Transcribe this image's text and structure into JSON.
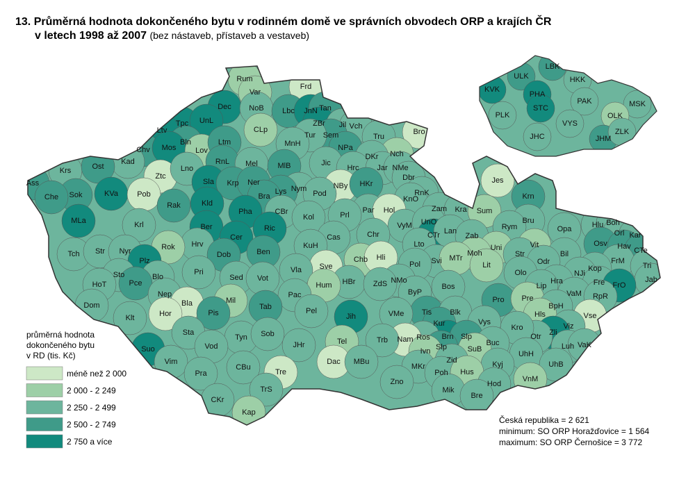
{
  "header": {
    "title_line1": "13. Průměrná hodnota dokončeného bytu v rodinném domě ve správních obvodech ORP a krajích ČR",
    "title_line2": "v letech 1998 až 2007",
    "title_note": "(bez nástaveb, přístaveb a vestaveb)"
  },
  "legend": {
    "title": [
      "průměrná hodnota",
      "dokončeného bytu",
      "v RD (tis. Kč)"
    ],
    "classes": [
      {
        "label": "méně než 2 000",
        "color": "#cde8c6"
      },
      {
        "label": "2 000 - 2 249",
        "color": "#9dcfa7"
      },
      {
        "label": "2 250 - 2 499",
        "color": "#6db59d"
      },
      {
        "label": "2 500 - 2 749",
        "color": "#3f9b89"
      },
      {
        "label": "2 750 a více",
        "color": "#128a7d"
      }
    ]
  },
  "notes": [
    "Česká republika = 2 621",
    "minimum: SO ORP Horažďovice = 1 564",
    "maximum: SO ORP Černošice = 3 772"
  ],
  "map": {
    "regions": [
      {
        "label": "Rum",
        "color": "#9dcfa7"
      },
      {
        "label": "Var",
        "color": "#9dcfa7"
      },
      {
        "label": "Frd",
        "color": "#cde8c6"
      },
      {
        "label": "Dec",
        "color": "#128a7d"
      },
      {
        "label": "NoB",
        "color": "#6db59d"
      },
      {
        "label": "Lbc",
        "color": "#3f9b89"
      },
      {
        "label": "JnN",
        "color": "#128a7d"
      },
      {
        "label": "Tan",
        "color": "#3f9b89"
      },
      {
        "label": "Tpc",
        "color": "#128a7d"
      },
      {
        "label": "UnL",
        "color": "#128a7d"
      },
      {
        "label": "CLp",
        "color": "#9dcfa7"
      },
      {
        "label": "ZBr",
        "color": "#128a7d"
      },
      {
        "label": "Jil",
        "color": "#6db59d"
      },
      {
        "label": "Vch",
        "color": "#6db59d"
      },
      {
        "label": "Ltv",
        "color": "#128a7d"
      },
      {
        "label": "Bln",
        "color": "#3f9b89"
      },
      {
        "label": "Sem",
        "color": "#3f9b89"
      },
      {
        "label": "Tur",
        "color": "#6db59d"
      },
      {
        "label": "Bro",
        "color": "#cde8c6"
      },
      {
        "label": "Chv",
        "color": "#3f9b89"
      },
      {
        "label": "Mos",
        "color": "#128a7d"
      },
      {
        "label": "Lov",
        "color": "#9dcfa7"
      },
      {
        "label": "Ltm",
        "color": "#3f9b89"
      },
      {
        "label": "MnH",
        "color": "#6db59d"
      },
      {
        "label": "Tru",
        "color": "#6db59d"
      },
      {
        "label": "NPa",
        "color": "#3f9b89"
      },
      {
        "label": "Nch",
        "color": "#9dcfa7"
      },
      {
        "label": "Kad",
        "color": "#6db59d"
      },
      {
        "label": "RnL",
        "color": "#3f9b89"
      },
      {
        "label": "Mel",
        "color": "#6db59d"
      },
      {
        "label": "MlB",
        "color": "#3f9b89"
      },
      {
        "label": "Jic",
        "color": "#6db59d"
      },
      {
        "label": "DKr",
        "color": "#6db59d"
      },
      {
        "label": "Krs",
        "color": "#6db59d"
      },
      {
        "label": "Ost",
        "color": "#3f9b89"
      },
      {
        "label": "Ztc",
        "color": "#cde8c6"
      },
      {
        "label": "Lno",
        "color": "#6db59d"
      },
      {
        "label": "Hrc",
        "color": "#6db59d"
      },
      {
        "label": "Jar",
        "color": "#6db59d"
      },
      {
        "label": "NMe",
        "color": "#6db59d"
      },
      {
        "label": "Ass",
        "color": "#3f9b89"
      },
      {
        "label": "Sla",
        "color": "#128a7d"
      },
      {
        "label": "Krp",
        "color": "#3f9b89"
      },
      {
        "label": "Ner",
        "color": "#3f9b89"
      },
      {
        "label": "Nym",
        "color": "#6db59d"
      },
      {
        "label": "NBy",
        "color": "#cde8c6"
      },
      {
        "label": "HKr",
        "color": "#3f9b89"
      },
      {
        "label": "Dbr",
        "color": "#6db59d"
      },
      {
        "label": "Jes",
        "color": "#cde8c6"
      },
      {
        "label": "Krn",
        "color": "#3f9b89"
      },
      {
        "label": "Sok",
        "color": "#3f9b89"
      },
      {
        "label": "KVa",
        "color": "#128a7d"
      },
      {
        "label": "Che",
        "color": "#3f9b89"
      },
      {
        "label": "Pob",
        "color": "#cde8c6"
      },
      {
        "label": "Lys",
        "color": "#3f9b89"
      },
      {
        "label": "Pod",
        "color": "#6db59d"
      },
      {
        "label": "RnK",
        "color": "#6db59d"
      },
      {
        "label": "Kld",
        "color": "#128a7d"
      },
      {
        "label": "Bra",
        "color": "#3f9b89"
      },
      {
        "label": "KnO",
        "color": "#6db59d"
      },
      {
        "label": "Rak",
        "color": "#3f9b89"
      },
      {
        "label": "Pha",
        "color": "#128a7d"
      },
      {
        "label": "CBr",
        "color": "#6db59d"
      },
      {
        "label": "Kol",
        "color": "#6db59d"
      },
      {
        "label": "Par",
        "color": "#6db59d"
      },
      {
        "label": "Hol",
        "color": "#cde8c6"
      },
      {
        "label": "Zam",
        "color": "#6db59d"
      },
      {
        "label": "Kra",
        "color": "#6db59d"
      },
      {
        "label": "Sum",
        "color": "#9dcfa7"
      },
      {
        "label": "Bru",
        "color": "#6db59d"
      },
      {
        "label": "MLa",
        "color": "#128a7d"
      },
      {
        "label": "Krl",
        "color": "#6db59d"
      },
      {
        "label": "Ber",
        "color": "#128a7d"
      },
      {
        "label": "Ric",
        "color": "#128a7d"
      },
      {
        "label": "Prl",
        "color": "#6db59d"
      },
      {
        "label": "VyM",
        "color": "#6db59d"
      },
      {
        "label": "UnO",
        "color": "#6db59d"
      },
      {
        "label": "Rym",
        "color": "#6db59d"
      },
      {
        "label": "Opa",
        "color": "#6db59d"
      },
      {
        "label": "Hlu",
        "color": "#6db59d"
      },
      {
        "label": "Boh",
        "color": "#6db59d"
      },
      {
        "label": "Orl",
        "color": "#6db59d"
      },
      {
        "label": "Kar",
        "color": "#6db59d"
      },
      {
        "label": "Chr",
        "color": "#6db59d"
      },
      {
        "label": "CTr",
        "color": "#128a7d"
      },
      {
        "label": "Lan",
        "color": "#6db59d"
      },
      {
        "label": "Zab",
        "color": "#6db59d"
      },
      {
        "label": "Cer",
        "color": "#128a7d"
      },
      {
        "label": "Cas",
        "color": "#6db59d"
      },
      {
        "label": "Hrv",
        "color": "#6db59d"
      },
      {
        "label": "Rok",
        "color": "#9dcfa7"
      },
      {
        "label": "KuH",
        "color": "#6db59d"
      },
      {
        "label": "Lto",
        "color": "#6db59d"
      },
      {
        "label": "Vit",
        "color": "#9dcfa7"
      },
      {
        "label": "Osv",
        "color": "#3f9b89"
      },
      {
        "label": "Hav",
        "color": "#3f9b89"
      },
      {
        "label": "CTe",
        "color": "#3f9b89"
      },
      {
        "label": "Tch",
        "color": "#6db59d"
      },
      {
        "label": "Str",
        "color": "#6db59d"
      },
      {
        "label": "Nyr",
        "color": "#6db59d"
      },
      {
        "label": "Dob",
        "color": "#3f9b89"
      },
      {
        "label": "Ben",
        "color": "#3f9b89"
      },
      {
        "label": "Uni",
        "color": "#9dcfa7"
      },
      {
        "label": "Moh",
        "color": "#9dcfa7"
      },
      {
        "label": "Str",
        "color": "#6db59d"
      },
      {
        "label": "Bil",
        "color": "#6db59d"
      },
      {
        "label": "Plz",
        "color": "#128a7d"
      },
      {
        "label": "Chb",
        "color": "#9dcfa7"
      },
      {
        "label": "Hli",
        "color": "#cde8c6"
      },
      {
        "label": "Svi",
        "color": "#6db59d"
      },
      {
        "label": "MTr",
        "color": "#9dcfa7"
      },
      {
        "label": "Odr",
        "color": "#6db59d"
      },
      {
        "label": "FrM",
        "color": "#6db59d"
      },
      {
        "label": "Sve",
        "color": "#cde8c6"
      },
      {
        "label": "Pol",
        "color": "#6db59d"
      },
      {
        "label": "Lit",
        "color": "#9dcfa7"
      },
      {
        "label": "Kop",
        "color": "#6db59d"
      },
      {
        "label": "Tri",
        "color": "#6db59d"
      },
      {
        "label": "Pri",
        "color": "#6db59d"
      },
      {
        "label": "Vla",
        "color": "#6db59d"
      },
      {
        "label": "Sto",
        "color": "#6db59d"
      },
      {
        "label": "Blo",
        "color": "#6db59d"
      },
      {
        "label": "Olo",
        "color": "#6db59d"
      },
      {
        "label": "NJi",
        "color": "#6db59d"
      },
      {
        "label": "Sed",
        "color": "#6db59d"
      },
      {
        "label": "Vot",
        "color": "#6db59d"
      },
      {
        "label": "HBr",
        "color": "#6db59d"
      },
      {
        "label": "NMo",
        "color": "#6db59d"
      },
      {
        "label": "Hra",
        "color": "#6db59d"
      },
      {
        "label": "Jab",
        "color": "#6db59d"
      },
      {
        "label": "Fre",
        "color": "#6db59d"
      },
      {
        "label": "FrO",
        "color": "#128a7d"
      },
      {
        "label": "HoT",
        "color": "#6db59d"
      },
      {
        "label": "Pce",
        "color": "#3f9b89"
      },
      {
        "label": "ZdS",
        "color": "#6db59d"
      },
      {
        "label": "Hum",
        "color": "#9dcfa7"
      },
      {
        "label": "Bos",
        "color": "#6db59d"
      },
      {
        "label": "Lip",
        "color": "#6db59d"
      },
      {
        "label": "Nep",
        "color": "#6db59d"
      },
      {
        "label": "Pac",
        "color": "#6db59d"
      },
      {
        "label": "ByP",
        "color": "#6db59d"
      },
      {
        "label": "VaM",
        "color": "#6db59d"
      },
      {
        "label": "RpR",
        "color": "#6db59d"
      },
      {
        "label": "Pro",
        "color": "#3f9b89"
      },
      {
        "label": "Pre",
        "color": "#9dcfa7"
      },
      {
        "label": "Mil",
        "color": "#9dcfa7"
      },
      {
        "label": "Bla",
        "color": "#cde8c6"
      },
      {
        "label": "Tab",
        "color": "#3f9b89"
      },
      {
        "label": "Dom",
        "color": "#6db59d"
      },
      {
        "label": "BpH",
        "color": "#6db59d"
      },
      {
        "label": "Pel",
        "color": "#6db59d"
      },
      {
        "label": "Pis",
        "color": "#3f9b89"
      },
      {
        "label": "Tis",
        "color": "#3f9b89"
      },
      {
        "label": "Blk",
        "color": "#6db59d"
      },
      {
        "label": "Hor",
        "color": "#cde8c6"
      },
      {
        "label": "Klt",
        "color": "#6db59d"
      },
      {
        "label": "Jih",
        "color": "#128a7d"
      },
      {
        "label": "VMe",
        "color": "#6db59d"
      },
      {
        "label": "Hls",
        "color": "#9dcfa7"
      },
      {
        "label": "Vse",
        "color": "#cde8c6"
      },
      {
        "label": "Kur",
        "color": "#3f9b89"
      },
      {
        "label": "Vys",
        "color": "#6db59d"
      },
      {
        "label": "Viz",
        "color": "#6db59d"
      },
      {
        "label": "Sta",
        "color": "#6db59d"
      },
      {
        "label": "Zli",
        "color": "#128a7d"
      },
      {
        "label": "Brn",
        "color": "#128a7d"
      },
      {
        "label": "Slp",
        "color": "#3f9b89"
      },
      {
        "label": "Ros",
        "color": "#6db59d"
      },
      {
        "label": "Otr",
        "color": "#6db59d"
      },
      {
        "label": "Kro",
        "color": "#6db59d"
      },
      {
        "label": "Tyn",
        "color": "#6db59d"
      },
      {
        "label": "Sob",
        "color": "#6db59d"
      },
      {
        "label": "Nam",
        "color": "#cde8c6"
      },
      {
        "label": "Tel",
        "color": "#9dcfa7"
      },
      {
        "label": "Trb",
        "color": "#6db59d"
      },
      {
        "label": "Slp",
        "color": "#3f9b89"
      },
      {
        "label": "Buc",
        "color": "#6db59d"
      },
      {
        "label": "Vod",
        "color": "#6db59d"
      },
      {
        "label": "JHr",
        "color": "#6db59d"
      },
      {
        "label": "Suo",
        "color": "#128a7d"
      },
      {
        "label": "Ivn",
        "color": "#9dcfa7"
      },
      {
        "label": "SuB",
        "color": "#9dcfa7"
      },
      {
        "label": "Luh",
        "color": "#6db59d"
      },
      {
        "label": "VaK",
        "color": "#6db59d"
      },
      {
        "label": "UhH",
        "color": "#6db59d"
      },
      {
        "label": "Dac",
        "color": "#cde8c6"
      },
      {
        "label": "MBu",
        "color": "#6db59d"
      },
      {
        "label": "Vim",
        "color": "#6db59d"
      },
      {
        "label": "Zid",
        "color": "#6db59d"
      },
      {
        "label": "MKr",
        "color": "#6db59d"
      },
      {
        "label": "Kyj",
        "color": "#6db59d"
      },
      {
        "label": "UhB",
        "color": "#6db59d"
      },
      {
        "label": "CBu",
        "color": "#6db59d"
      },
      {
        "label": "Poh",
        "color": "#6db59d"
      },
      {
        "label": "Hus",
        "color": "#9dcfa7"
      },
      {
        "label": "Tre",
        "color": "#cde8c6"
      },
      {
        "label": "Pra",
        "color": "#6db59d"
      },
      {
        "label": "VnM",
        "color": "#9dcfa7"
      },
      {
        "label": "Zno",
        "color": "#6db59d"
      },
      {
        "label": "Hod",
        "color": "#6db59d"
      },
      {
        "label": "TrS",
        "color": "#6db59d"
      },
      {
        "label": "Mik",
        "color": "#6db59d"
      },
      {
        "label": "CKr",
        "color": "#6db59d"
      },
      {
        "label": "Bre",
        "color": "#6db59d"
      },
      {
        "label": "Kap",
        "color": "#9dcfa7"
      }
    ]
  },
  "inset": {
    "regions": [
      {
        "label": "KVK",
        "color": "#128a7d"
      },
      {
        "label": "ULK",
        "color": "#3f9b89"
      },
      {
        "label": "LBK",
        "color": "#3f9b89"
      },
      {
        "label": "HKK",
        "color": "#6db59d"
      },
      {
        "label": "PHA",
        "color": "#128a7d"
      },
      {
        "label": "STC",
        "color": "#128a7d"
      },
      {
        "label": "PAK",
        "color": "#6db59d"
      },
      {
        "label": "MSK",
        "color": "#6db59d"
      },
      {
        "label": "PLK",
        "color": "#6db59d"
      },
      {
        "label": "VYS",
        "color": "#6db59d"
      },
      {
        "label": "OLK",
        "color": "#9dcfa7"
      },
      {
        "label": "JHM",
        "color": "#3f9b89"
      },
      {
        "label": "ZLK",
        "color": "#6db59d"
      },
      {
        "label": "JHC",
        "color": "#6db59d"
      }
    ]
  }
}
